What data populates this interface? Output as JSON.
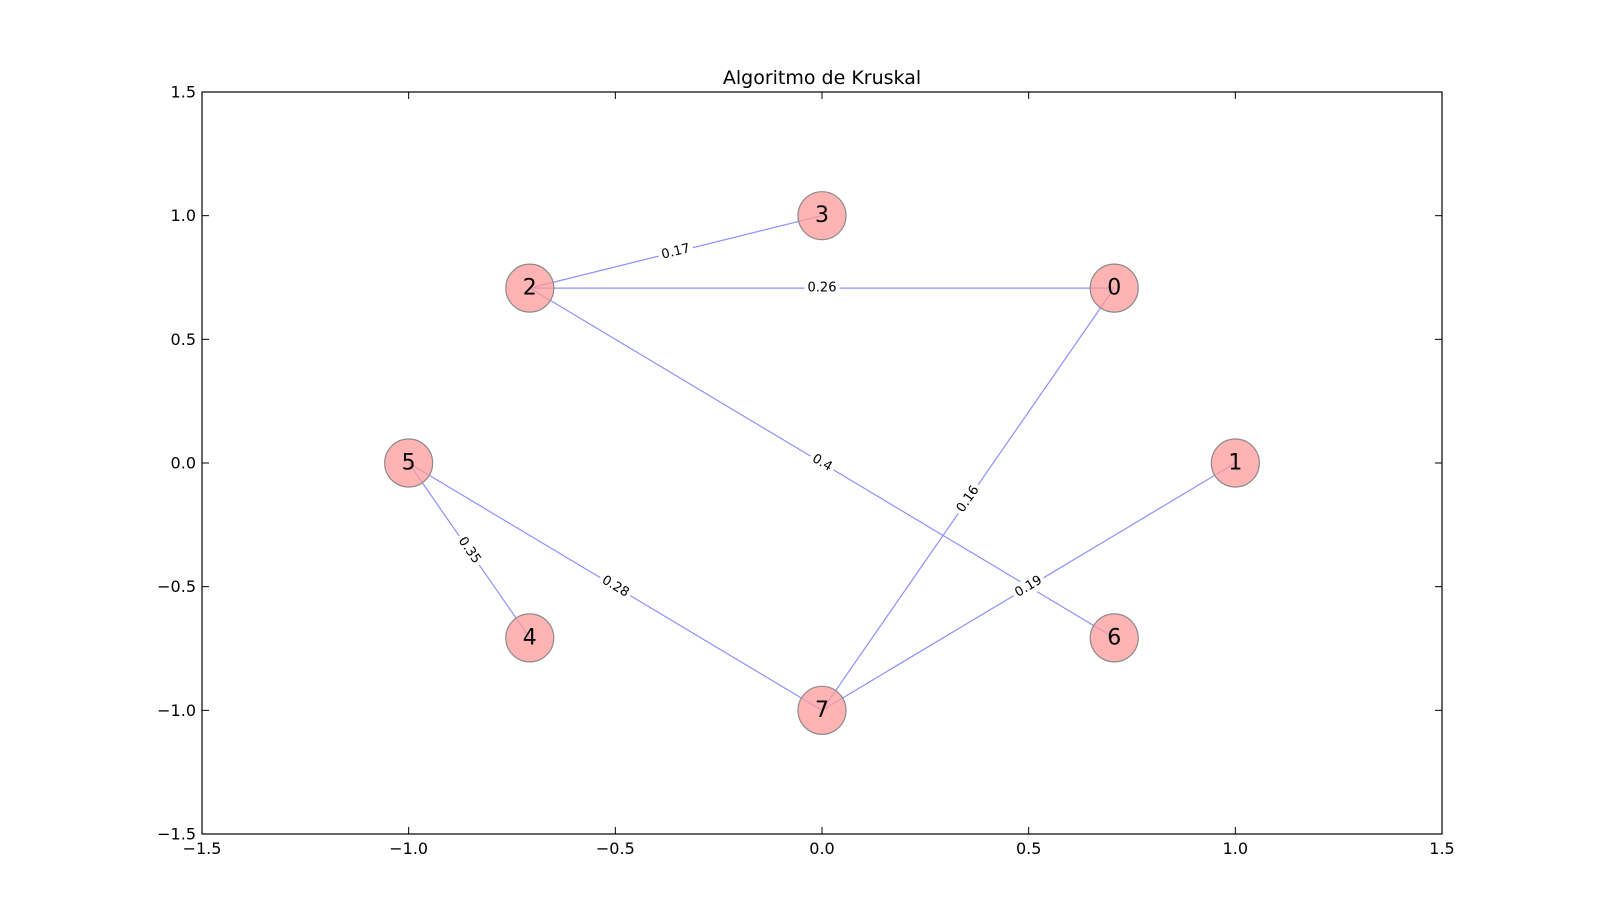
{
  "chart_data": {
    "type": "graph",
    "title": "Algoritmo de Kruskal",
    "xlim": [
      -1.5,
      1.5
    ],
    "ylim": [
      -1.5,
      1.5
    ],
    "xticks": [
      -1.5,
      -1.0,
      -0.5,
      0.0,
      0.5,
      1.0,
      1.5
    ],
    "xtick_labels": [
      "−1.5",
      "−1.0",
      "−0.5",
      "0.0",
      "0.5",
      "1.0",
      "1.5"
    ],
    "yticks": [
      1.5,
      1.0,
      0.5,
      0.0,
      -0.5,
      -1.0,
      -1.5
    ],
    "ytick_labels": [
      "1.5",
      "1.0",
      "0.5",
      "0.0",
      "−0.5",
      "−1.0",
      "−1.5"
    ],
    "grid": false,
    "node_color": "#ff9999",
    "node_edge_color": "#8a8a8a",
    "edge_color": "#8f8fff",
    "nodes": [
      {
        "id": "0",
        "x": 0.707,
        "y": 0.707
      },
      {
        "id": "1",
        "x": 1.0,
        "y": 0.0
      },
      {
        "id": "2",
        "x": -0.707,
        "y": 0.707
      },
      {
        "id": "3",
        "x": 0.0,
        "y": 1.0
      },
      {
        "id": "4",
        "x": -0.707,
        "y": -0.707
      },
      {
        "id": "5",
        "x": -1.0,
        "y": 0.0
      },
      {
        "id": "6",
        "x": 0.707,
        "y": -0.707
      },
      {
        "id": "7",
        "x": 0.0,
        "y": -1.0
      }
    ],
    "edges": [
      {
        "source": "2",
        "target": "3",
        "weight": "0.17"
      },
      {
        "source": "2",
        "target": "0",
        "weight": "0.26"
      },
      {
        "source": "2",
        "target": "6",
        "weight": "0.4"
      },
      {
        "source": "0",
        "target": "7",
        "weight": "0.16"
      },
      {
        "source": "1",
        "target": "7",
        "weight": "0.19"
      },
      {
        "source": "5",
        "target": "4",
        "weight": "0.35"
      },
      {
        "source": "5",
        "target": "7",
        "weight": "0.28"
      }
    ]
  }
}
